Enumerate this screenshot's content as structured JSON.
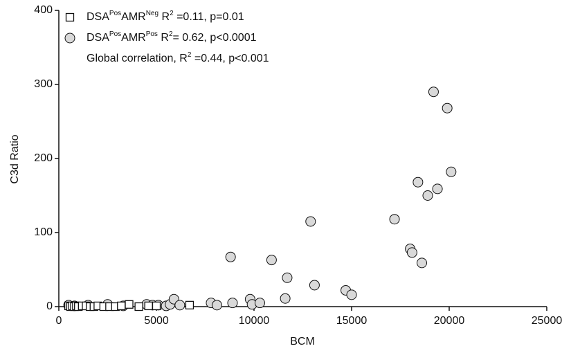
{
  "chart_data": {
    "type": "scatter",
    "xlabel": "BCM",
    "ylabel": "C3d Ratio",
    "xlim": [
      0,
      25000
    ],
    "xticks": [
      0,
      5000,
      10000,
      15000,
      20000,
      25000
    ],
    "ylim": [
      0,
      400
    ],
    "yticks": [
      0,
      100,
      200,
      300,
      400
    ],
    "series": [
      {
        "name_parts": [
          {
            "text": "DSA"
          },
          {
            "text": "Pos",
            "sup": true
          },
          {
            "text": "AMR"
          },
          {
            "text": "Neg",
            "sup": true
          },
          {
            "text": " R"
          },
          {
            "text": "2",
            "sup": true
          },
          {
            "text": " =0.11, p=0.01"
          }
        ],
        "marker": "square",
        "color": "#ffffff",
        "x": [
          500,
          600,
          700,
          800,
          900,
          1000,
          1200,
          1400,
          1600,
          1800,
          2000,
          2300,
          2600,
          2900,
          3200,
          3600,
          4100,
          4600,
          5000,
          6700
        ],
        "values": [
          1,
          0,
          1,
          0,
          1,
          0,
          1,
          1,
          0,
          0,
          1,
          0,
          0,
          0,
          1,
          3,
          0,
          1,
          1,
          2
        ]
      },
      {
        "name_parts": [
          {
            "text": "DSA"
          },
          {
            "text": "Pos",
            "sup": true
          },
          {
            "text": "AMR"
          },
          {
            "text": "Pos",
            "sup": true
          },
          {
            "text": " R"
          },
          {
            "text": "2",
            "sup": true
          },
          {
            "text": "= 0.62, p<0.0001"
          }
        ],
        "marker": "circle",
        "color": "#d9d9d9",
        "x": [
          500,
          800,
          1500,
          2500,
          3300,
          4500,
          4800,
          5100,
          5500,
          5700,
          5900,
          6200,
          7800,
          8100,
          8900,
          9800,
          9900,
          10300,
          8800,
          10900,
          11700,
          11600,
          12900,
          13100,
          14700,
          15000,
          17200,
          18000,
          18100,
          18400,
          18600,
          18900,
          19200,
          19400,
          19900,
          20100
        ],
        "values": [
          2,
          1,
          2,
          3,
          1,
          3,
          2,
          2,
          1,
          3,
          10,
          2,
          5,
          2,
          5,
          10,
          3,
          5,
          67,
          63,
          39,
          11,
          115,
          29,
          22,
          16,
          118,
          78,
          73,
          168,
          59,
          150,
          290,
          159,
          268,
          182
        ]
      }
    ],
    "annotation_parts": [
      {
        "text": "Global correlation, R"
      },
      {
        "text": "2",
        "sup": true
      },
      {
        "text": " =0.44, p<0.001"
      }
    ]
  }
}
